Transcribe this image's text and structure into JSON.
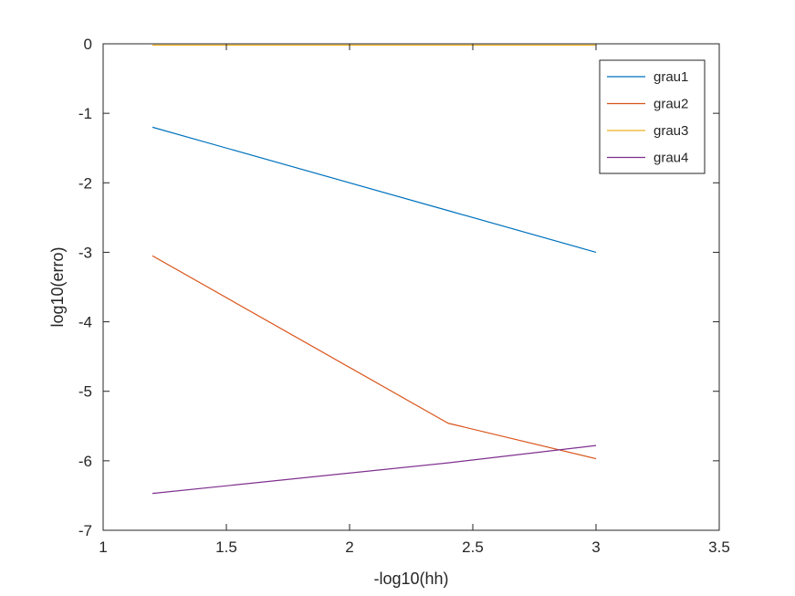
{
  "chart_data": {
    "type": "line",
    "title": "",
    "xlabel": "-log10(hh)",
    "ylabel": "log10(erro)",
    "xlim": [
      1,
      3.5
    ],
    "ylim": [
      -7,
      0
    ],
    "xticks": [
      1,
      1.5,
      2,
      2.5,
      3,
      3.5
    ],
    "yticks": [
      0,
      -1,
      -2,
      -3,
      -4,
      -5,
      -6,
      -7
    ],
    "xtick_labels": [
      "1",
      "1.5",
      "2",
      "2.5",
      "3",
      "3.5"
    ],
    "ytick_labels": [
      "0",
      "-1",
      "-2",
      "-3",
      "-4",
      "-5",
      "-6",
      "-7"
    ],
    "grid": false,
    "legend_position": "top-right",
    "series": [
      {
        "name": "grau1",
        "color": "#0072bd",
        "x": [
          1.2,
          2.4,
          3.0
        ],
        "y": [
          -1.2,
          -2.4,
          -3.0
        ]
      },
      {
        "name": "grau2",
        "color": "#d95319",
        "x": [
          1.2,
          2.4,
          3.0
        ],
        "y": [
          -3.05,
          -5.46,
          -5.97
        ]
      },
      {
        "name": "grau3",
        "color": "#edb120",
        "x": [
          1.2,
          2.4,
          3.0
        ],
        "y": [
          -0.02,
          -0.02,
          -0.02
        ]
      },
      {
        "name": "grau4",
        "color": "#7e2f8e",
        "x": [
          1.2,
          2.4,
          3.0
        ],
        "y": [
          -6.47,
          -6.03,
          -5.78
        ]
      }
    ]
  }
}
